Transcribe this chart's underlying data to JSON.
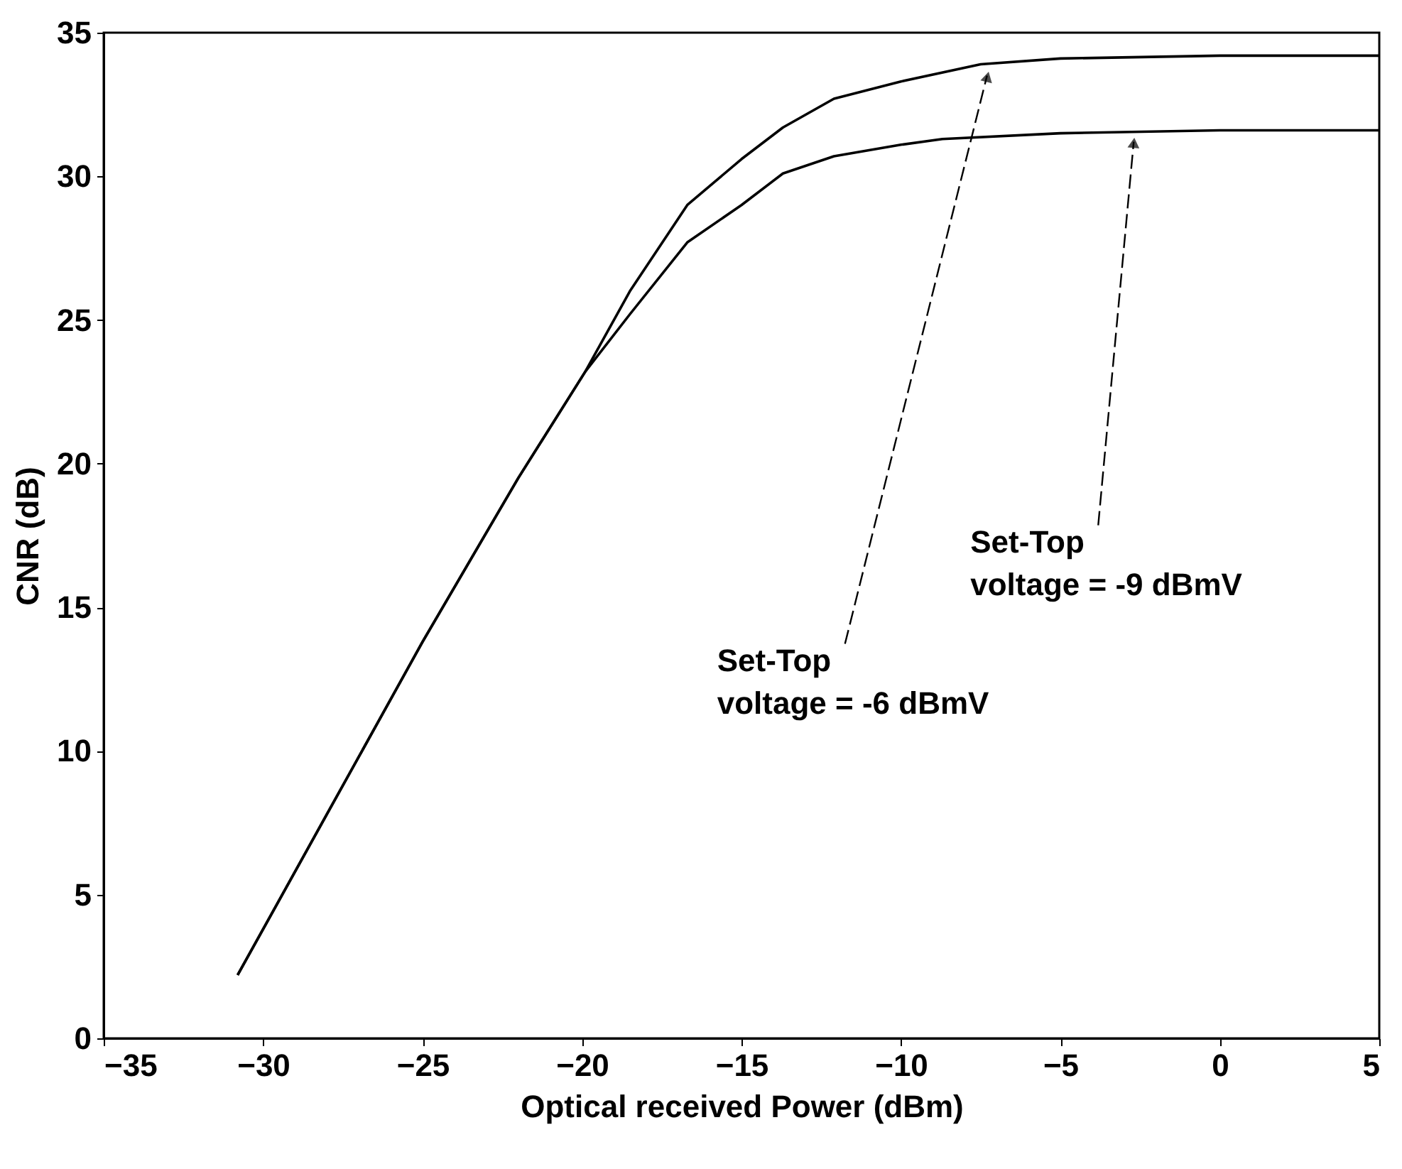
{
  "chart_data": {
    "type": "line",
    "xlabel": "Optical received Power (dBm)",
    "ylabel": "CNR (dB)",
    "xlim": [
      -35,
      5
    ],
    "xticks": [
      -35,
      -30,
      -25,
      -20,
      -15,
      -10,
      -5,
      0,
      5
    ],
    "ylim": [
      0,
      35
    ],
    "yticks": [
      0,
      5,
      10,
      15,
      20,
      25,
      30,
      35
    ],
    "grid": false,
    "legend": false,
    "marker": "none",
    "line_style": "solid",
    "series": [
      {
        "color": "#000000",
        "x": [
          -30.8,
          -28,
          -25,
          -22,
          -19.9,
          -18.5,
          -16.7,
          -15,
          -13.7,
          -12.1,
          -10,
          -7.5,
          -5,
          0,
          5
        ],
        "values": [
          2.2,
          7.8,
          13.8,
          19.5,
          23.2,
          26.0,
          29.0,
          30.6,
          31.7,
          32.7,
          33.3,
          33.9,
          34.1,
          34.2,
          34.2
        ]
      },
      {
        "color": "#000000",
        "x": [
          -30.8,
          -28,
          -25,
          -22,
          -19.9,
          -18.5,
          -16.7,
          -15,
          -13.7,
          -12.1,
          -10,
          -8.7,
          -5,
          0,
          5
        ],
        "values": [
          2.2,
          7.8,
          13.8,
          19.5,
          23.2,
          25.2,
          27.7,
          29.0,
          30.1,
          30.7,
          31.1,
          31.3,
          31.5,
          31.6,
          31.6
        ]
      }
    ],
    "annotations": [
      {
        "text": "Set-Top\nvoltage = -6 dBmV",
        "x": -7.3,
        "y": 33.9
      },
      {
        "text": "Set-Top\nvoltage = -9 dBmV",
        "x": -2.7,
        "y": 31.6
      }
    ]
  }
}
